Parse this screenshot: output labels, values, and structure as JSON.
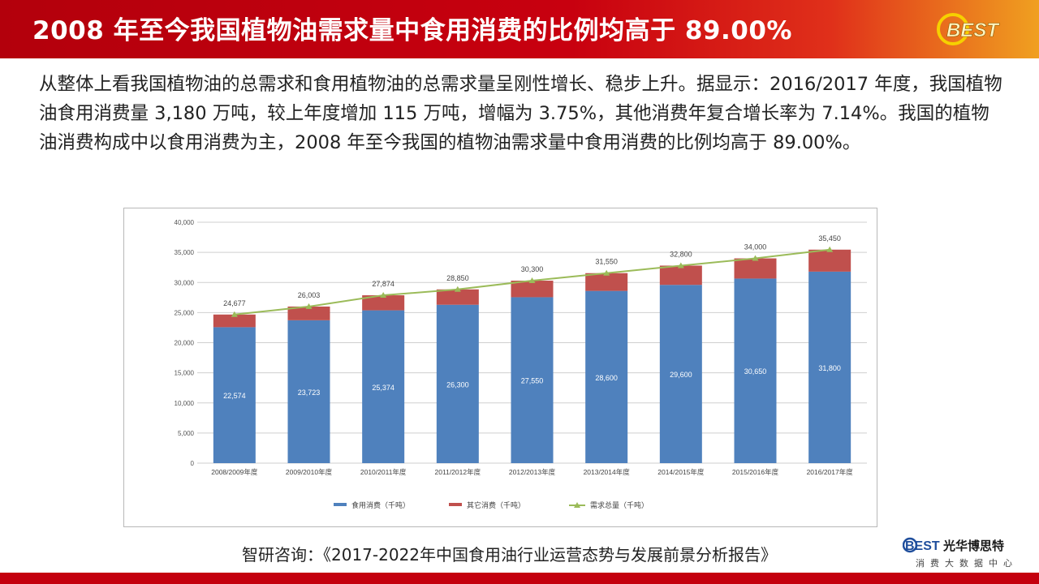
{
  "header": {
    "title": "2008 年至今我国植物油需求量中食用消费的比例均高于 89.00%",
    "logo_text": "BEST"
  },
  "intro": {
    "text": "从整体上看我国植物油的总需求和食用植物油的总需求量呈刚性增长、稳步上升。据显示：2016/2017 年度，我国植物油食用消费量 3,180 万吨，较上年度增加 115 万吨，增幅为 3.75%，其他消费年复合增长率为 7.14%。我国的植物油消费构成中以食用消费为主，2008 年至今我国的植物油需求量中食用消费的比例均高于 89.00%。"
  },
  "chart_data": {
    "type": "bar",
    "stacked": true,
    "categories": [
      "2008/2009年度",
      "2009/2010年度",
      "2010/2011年度",
      "2011/2012年度",
      "2012/2013年度",
      "2013/2014年度",
      "2014/2015年度",
      "2015/2016年度",
      "2016/2017年度"
    ],
    "series": [
      {
        "name": "食用消费（千吨）",
        "values": [
          22574,
          23723,
          25374,
          26300,
          27550,
          28600,
          29600,
          30650,
          31800
        ],
        "color": "#4f81bd"
      },
      {
        "name": "其它消费（千吨）",
        "values": [
          2103,
          2280,
          2500,
          2550,
          2750,
          2950,
          3200,
          3350,
          3650
        ],
        "color": "#c0504d"
      },
      {
        "name": "需求总量（千吨）",
        "type": "line",
        "values": [
          24677,
          26003,
          27874,
          28850,
          30300,
          31550,
          32800,
          34000,
          35450
        ],
        "color": "#9bbb59"
      }
    ],
    "food_labels": [
      "22,574",
      "23,723",
      "25,374",
      "26,300",
      "27,550",
      "28,600",
      "29,600",
      "30,650",
      "31,800"
    ],
    "total_labels": [
      "24,677",
      "26,003",
      "27,874",
      "28,850",
      "30,300",
      "31,550",
      "32,800",
      "34,000",
      "35,450"
    ],
    "y_ticks": [
      "0",
      "5,000",
      "10,000",
      "15,000",
      "20,000",
      "25,000",
      "30,000",
      "35,000",
      "40,000"
    ],
    "ylim": [
      0,
      40000
    ],
    "grid": true,
    "legend_position": "bottom",
    "title": "",
    "xlabel": "",
    "ylabel": ""
  },
  "source": {
    "text": "智研咨询：《2017-2022年中国食用油行业运营态势与发展前景分析报告》"
  },
  "brand": {
    "logo_text": "BEST",
    "name": "光华博思特",
    "subtitle": "消费大数据中心"
  },
  "colors": {
    "header_red": "#c8000f",
    "footer_red": "#c4000e"
  }
}
